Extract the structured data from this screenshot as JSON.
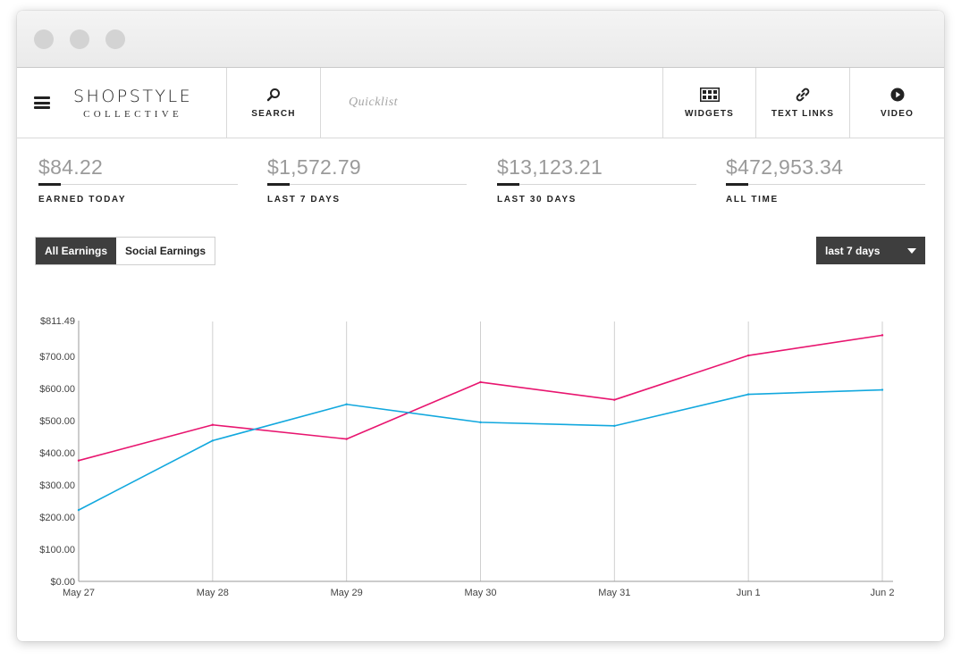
{
  "nav": {
    "logo_main": "SHOPSTYLE",
    "logo_sub": "COLLECTIVE",
    "search_label": "SEARCH",
    "quicklist_placeholder": "Quicklist",
    "widgets_label": "WIDGETS",
    "text_links_label": "TEXT LINKS",
    "video_label": "VIDEO",
    "icons": [
      "menu-icon",
      "search-icon",
      "widgets-grid-icon",
      "link-icon",
      "play-icon"
    ]
  },
  "stats": [
    {
      "value": "$84.22",
      "label": "EARNED TODAY"
    },
    {
      "value": "$1,572.79",
      "label": "LAST 7 DAYS"
    },
    {
      "value": "$13,123.21",
      "label": "LAST 30 DAYS"
    },
    {
      "value": "$472,953.34",
      "label": "ALL TIME"
    }
  ],
  "toggle": {
    "all_label": "All Earnings",
    "social_label": "Social Earnings",
    "selected": "All Earnings"
  },
  "range_dropdown": {
    "selected": "last 7 days"
  },
  "colors": {
    "pink": "#e8156f",
    "blue": "#12a8de",
    "dark": "#3e3e3e"
  },
  "chart_data": {
    "type": "line",
    "x": [
      "May 27",
      "May 28",
      "May 29",
      "May 30",
      "May 31",
      "Jun 1",
      "Jun 2"
    ],
    "series": [
      {
        "color": "#e8156f",
        "values": [
          376,
          487,
          443,
          620,
          565,
          703,
          766
        ]
      },
      {
        "color": "#12a8de",
        "values": [
          222,
          438,
          551,
          495,
          484,
          582,
          596
        ]
      }
    ],
    "y_ticks": [
      "$0.00",
      "$100.00",
      "$200.00",
      "$300.00",
      "$400.00",
      "$500.00",
      "$600.00",
      "$700.00",
      "$811.49"
    ],
    "y_tick_values": [
      0,
      100,
      200,
      300,
      400,
      500,
      600,
      700,
      811.49
    ],
    "ylim": [
      0,
      811.49
    ],
    "grid": "vertical"
  }
}
